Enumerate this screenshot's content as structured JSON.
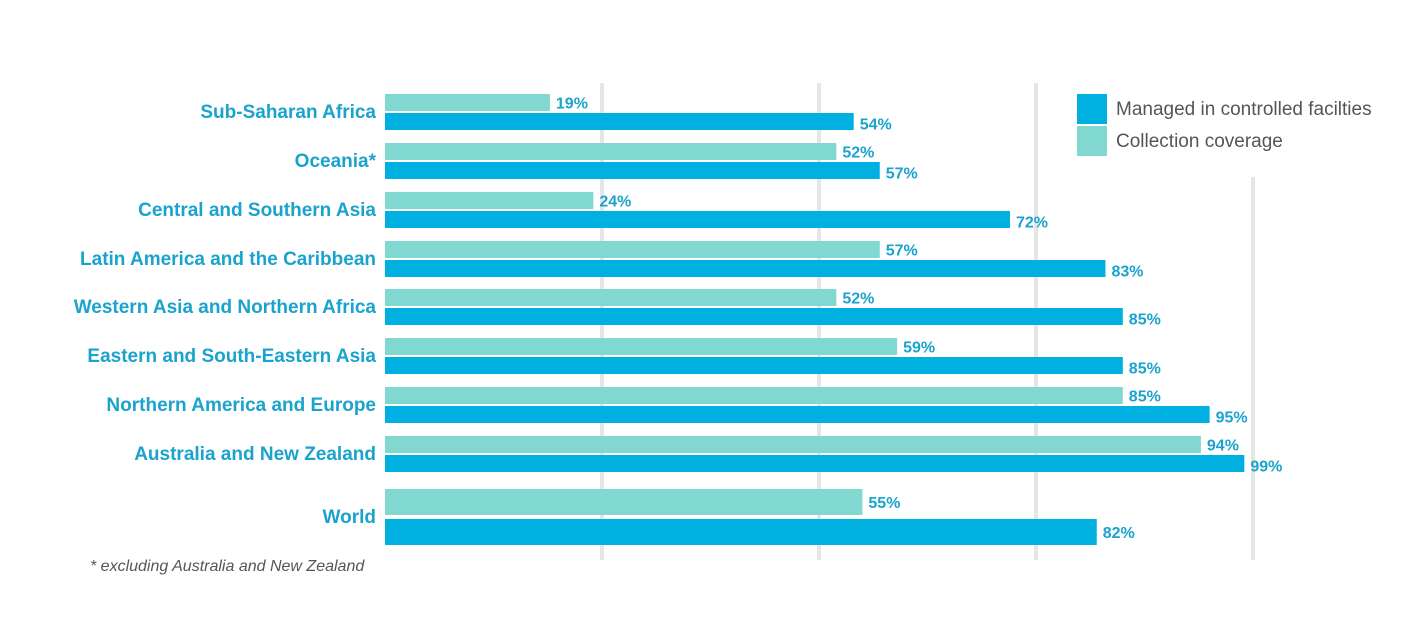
{
  "chart_data": {
    "type": "bar",
    "orientation": "horizontal",
    "categories": [
      "Sub-Saharan Africa",
      "Oceania*",
      "Central and Southern Asia",
      "Latin America and the Caribbean",
      "Western Asia and Northern Africa",
      "Eastern and South-Eastern Asia",
      "Northern America and Europe",
      "Australia and New Zealand",
      "World"
    ],
    "series": [
      {
        "name": "Managed in controlled facilties",
        "color": "#00b0e0",
        "values": [
          54,
          57,
          72,
          83,
          85,
          85,
          95,
          99,
          82
        ]
      },
      {
        "name": "Collection coverage",
        "color": "#80d8d0",
        "values": [
          19,
          52,
          24,
          57,
          52,
          59,
          85,
          94,
          55
        ]
      }
    ],
    "value_suffix": "%",
    "xlim": [
      0,
      100
    ],
    "grid": true,
    "legend_position": "top-right",
    "category_label_color": "#1aa3cc",
    "value_label_color": "#1aa3cc"
  },
  "footnote": "* excluding Australia and New Zealand"
}
